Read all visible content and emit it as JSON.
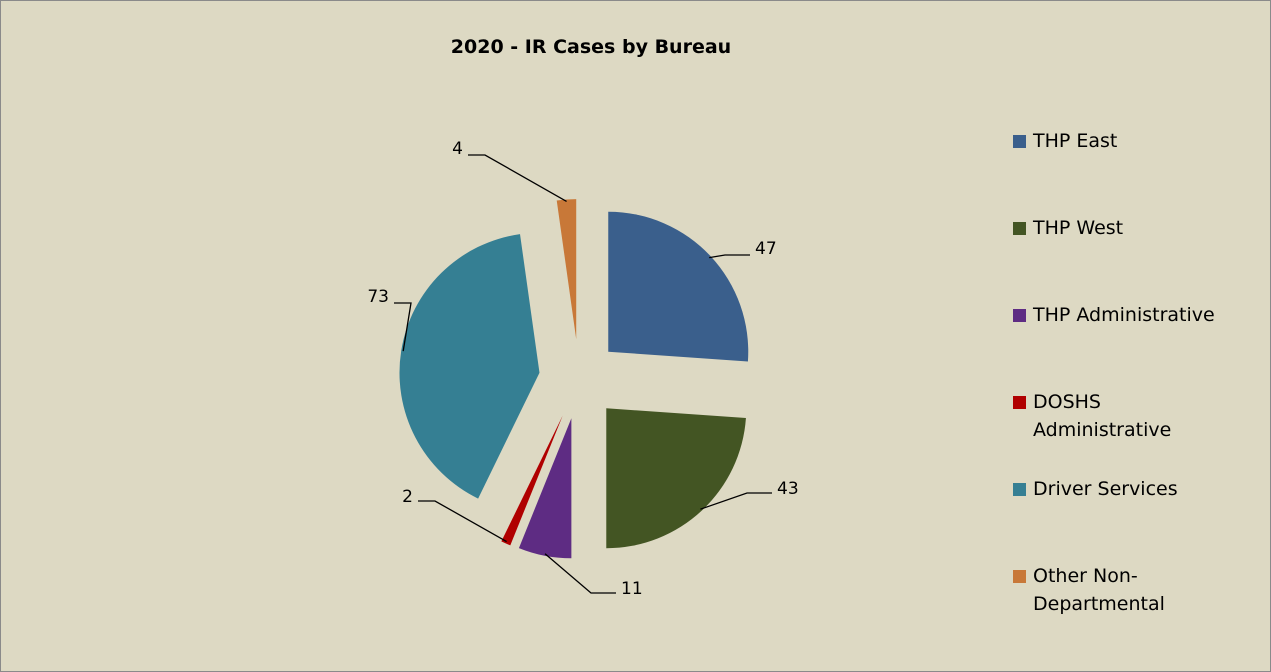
{
  "chart_data": {
    "type": "pie",
    "title": "2020 - IR Cases by Bureau",
    "categories": [
      "THP East",
      "THP West",
      "THP Administrative",
      "DOSHS Administrative",
      "Driver Services",
      "Other Non-Departmental"
    ],
    "values": [
      47,
      43,
      11,
      2,
      73,
      4
    ],
    "colors": [
      "#3a5f8c",
      "#435523",
      "#5e2c83",
      "#b00000",
      "#357f93",
      "#c87838"
    ],
    "legend": "right"
  }
}
